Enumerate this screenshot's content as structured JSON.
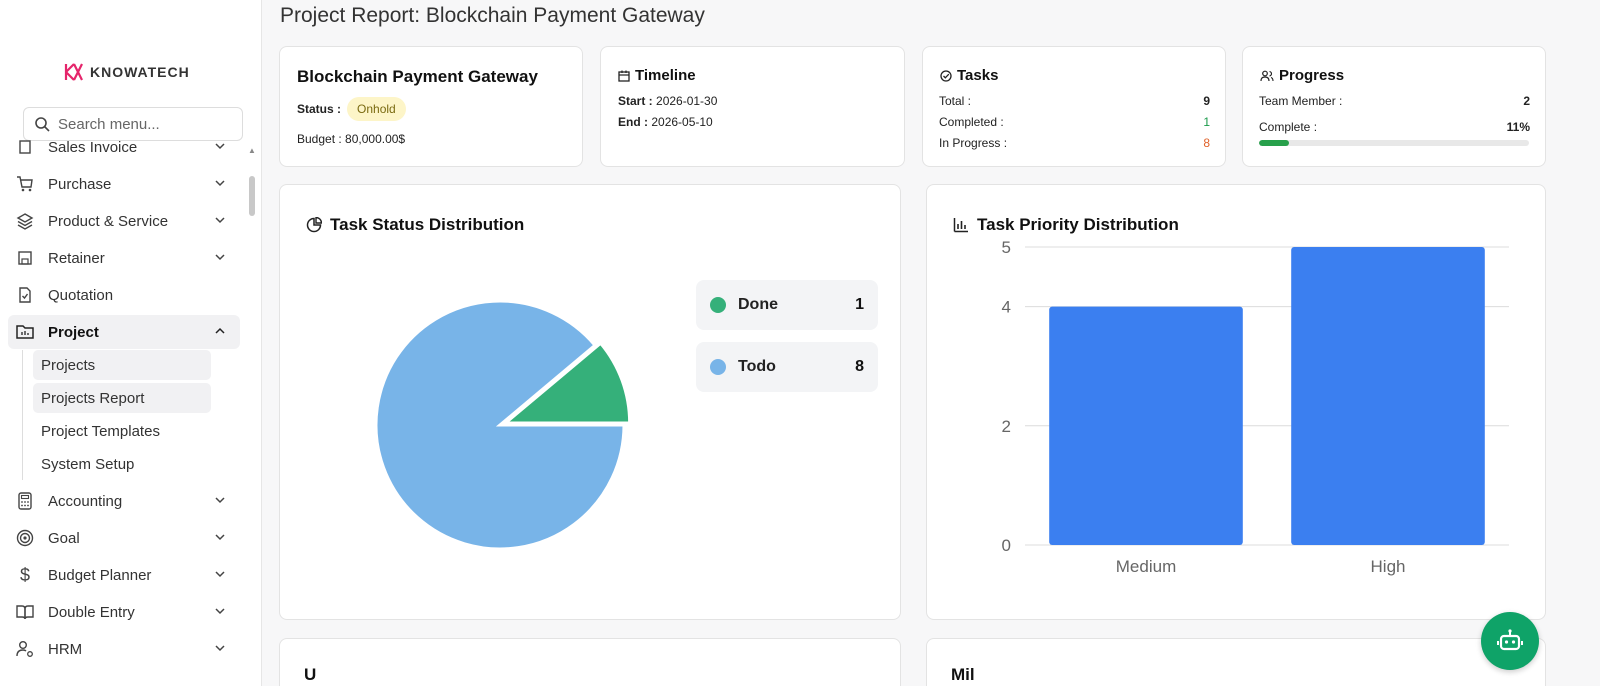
{
  "sidebar": {
    "logo_text": "KNOWATECH",
    "search_placeholder": "Search menu...",
    "items": [
      {
        "label": "Sales Invoice"
      },
      {
        "label": "Purchase"
      },
      {
        "label": "Product & Service"
      },
      {
        "label": "Retainer"
      },
      {
        "label": "Quotation"
      },
      {
        "label": "Project"
      },
      {
        "label": "Accounting"
      },
      {
        "label": "Goal"
      },
      {
        "label": "Budget Planner"
      },
      {
        "label": "Double Entry"
      },
      {
        "label": "HRM"
      }
    ],
    "project_sub": [
      {
        "label": "Projects"
      },
      {
        "label": "Projects Report"
      },
      {
        "label": "Project Templates"
      },
      {
        "label": "System Setup"
      }
    ]
  },
  "page": {
    "title": "Project Report: Blockchain Payment Gateway"
  },
  "overview": {
    "name": "Blockchain Payment Gateway",
    "status_label": "Status :",
    "status_value": "Onhold",
    "budget_label": "Budget :",
    "budget_value": "80,000.00$"
  },
  "timeline": {
    "title": "Timeline",
    "start_label": "Start :",
    "start_value": "2026-01-30",
    "end_label": "End :",
    "end_value": "2026-05-10"
  },
  "tasks": {
    "title": "Tasks",
    "total_label": "Total :",
    "total_value": "9",
    "completed_label": "Completed :",
    "completed_value": "1",
    "in_progress_label": "In Progress :",
    "in_progress_value": "8"
  },
  "progress": {
    "title": "Progress",
    "team_label": "Team Member :",
    "team_value": "2",
    "complete_label": "Complete :",
    "complete_value": "11%",
    "complete_fraction": 0.11
  },
  "status_chart": {
    "title": "Task Status Distribution",
    "legend": [
      {
        "label": "Done",
        "count": "1",
        "color": "#35b07a"
      },
      {
        "label": "Todo",
        "count": "8",
        "color": "#78b4e8"
      }
    ]
  },
  "priority_chart": {
    "title": "Task Priority Distribution"
  },
  "chart_data": [
    {
      "type": "pie",
      "title": "Task Status Distribution",
      "labels": [
        "Done",
        "Todo"
      ],
      "values": [
        1,
        8
      ],
      "colors": [
        "#35b07a",
        "#78b4e8"
      ]
    },
    {
      "type": "bar",
      "title": "Task Priority Distribution",
      "categories": [
        "Medium",
        "High"
      ],
      "values": [
        4,
        5
      ],
      "color": "#3b7ff0",
      "ylim": [
        0,
        5
      ],
      "yticks": [
        0,
        2,
        4,
        5
      ],
      "grid": true
    }
  ],
  "bottom": {
    "left_title": "U",
    "right_title": "Mil"
  },
  "colors": {
    "green": "#1a9a4a",
    "orange": "#e0622a",
    "fab": "#0fa368"
  }
}
